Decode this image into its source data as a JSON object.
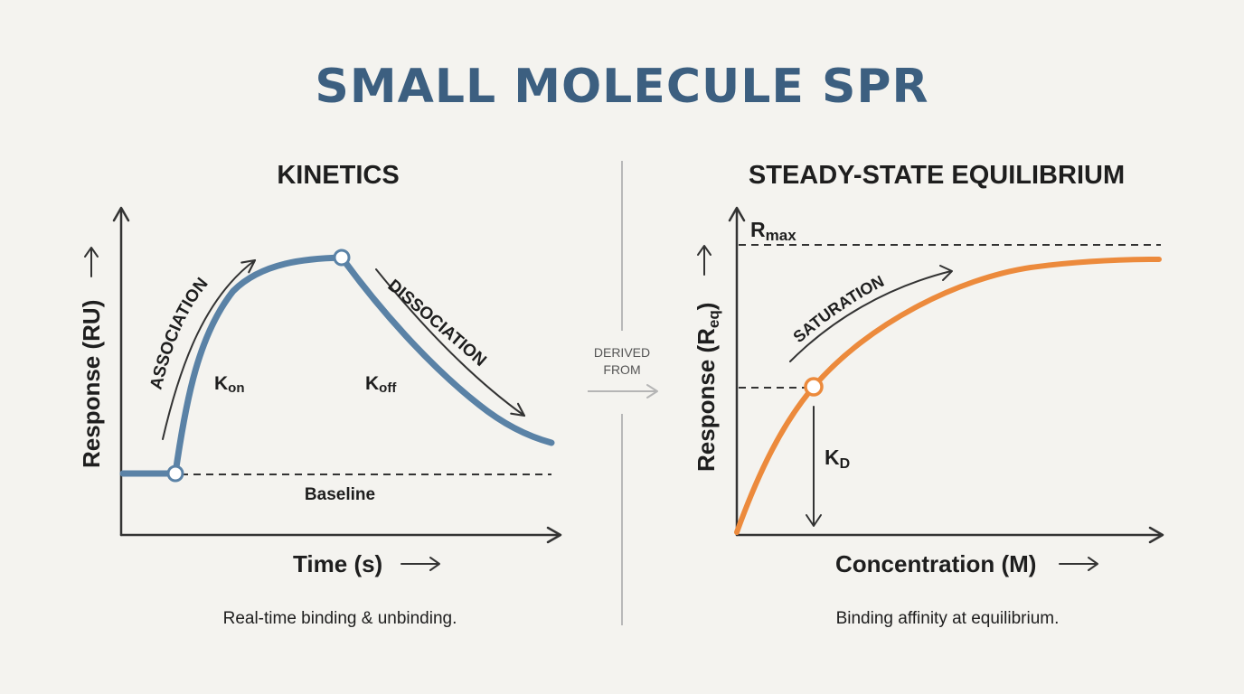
{
  "title": "SMALL MOLECULE SPR",
  "kinetics": {
    "title": "KINETICS",
    "y_axis": "Response (RU)",
    "x_axis": "Time (s)",
    "association": "ASSOCIATION",
    "dissociation": "DISSOCIATION",
    "kon": {
      "main": "K",
      "sub": "on"
    },
    "koff": {
      "main": "K",
      "sub": "off"
    },
    "baseline": "Baseline",
    "caption": "Real-time binding & unbinding."
  },
  "connector": {
    "line1": "DERIVED",
    "line2": "FROM"
  },
  "equilibrium": {
    "title": "STEADY-STATE EQUILIBRIUM",
    "y_axis_main": "Response (R",
    "y_axis_sub": "eq",
    "y_axis_end": ")",
    "x_axis": "Concentration (M)",
    "rmax": {
      "main": "R",
      "sub": "max"
    },
    "saturation": "SATURATION",
    "kd": {
      "main": "K",
      "sub": "D"
    },
    "caption": "Binding affinity at equilibrium."
  },
  "colors": {
    "title": "#3c5f80",
    "kinetics_curve": "#5a82a6",
    "equilibrium_curve": "#ec8a3c",
    "background": "#f4f3ef"
  }
}
